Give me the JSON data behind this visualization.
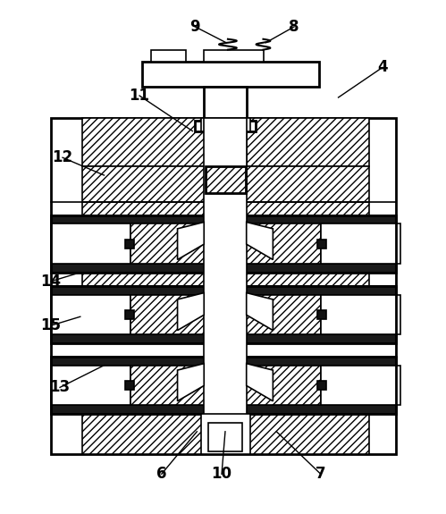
{
  "bg_color": "#ffffff",
  "line_color": "#000000",
  "fig_width": 4.99,
  "fig_height": 5.75,
  "label_fontsize": 12,
  "label_bold": true
}
